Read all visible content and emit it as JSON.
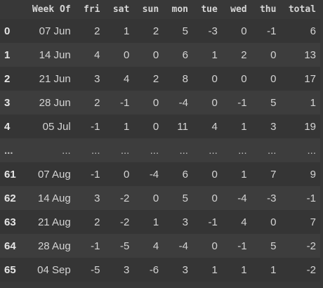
{
  "table": {
    "columns": [
      "",
      "Week Of",
      "fri",
      "sat",
      "sun",
      "mon",
      "tue",
      "wed",
      "thu",
      "total"
    ],
    "rows": [
      {
        "index": "0",
        "cells": [
          "07 Jun",
          "2",
          "1",
          "2",
          "5",
          "-3",
          "0",
          "-1",
          "6"
        ]
      },
      {
        "index": "1",
        "cells": [
          "14 Jun",
          "4",
          "0",
          "0",
          "6",
          "1",
          "2",
          "0",
          "13"
        ]
      },
      {
        "index": "2",
        "cells": [
          "21 Jun",
          "3",
          "4",
          "2",
          "8",
          "0",
          "0",
          "0",
          "17"
        ]
      },
      {
        "index": "3",
        "cells": [
          "28 Jun",
          "2",
          "-1",
          "0",
          "-4",
          "0",
          "-1",
          "5",
          "1"
        ]
      },
      {
        "index": "4",
        "cells": [
          "05 Jul",
          "-1",
          "1",
          "0",
          "11",
          "4",
          "1",
          "3",
          "19"
        ]
      },
      {
        "index": "...",
        "cells": [
          "...",
          "...",
          "...",
          "...",
          "...",
          "...",
          "...",
          "...",
          "..."
        ]
      },
      {
        "index": "61",
        "cells": [
          "07 Aug",
          "-1",
          "0",
          "-4",
          "6",
          "0",
          "1",
          "7",
          "9"
        ]
      },
      {
        "index": "62",
        "cells": [
          "14 Aug",
          "3",
          "-2",
          "0",
          "5",
          "0",
          "-4",
          "-3",
          "-1"
        ]
      },
      {
        "index": "63",
        "cells": [
          "21 Aug",
          "2",
          "-2",
          "1",
          "3",
          "-1",
          "4",
          "0",
          "7"
        ]
      },
      {
        "index": "64",
        "cells": [
          "28 Aug",
          "-1",
          "-5",
          "4",
          "-4",
          "0",
          "-1",
          "5",
          "-2"
        ]
      },
      {
        "index": "65",
        "cells": [
          "04 Sep",
          "-5",
          "3",
          "-6",
          "3",
          "1",
          "1",
          "1",
          "-2"
        ]
      }
    ]
  },
  "colors": {
    "background": "#383838",
    "row_odd": "#353535",
    "row_even": "#3d3d3d",
    "text": "#d4d4d4"
  }
}
